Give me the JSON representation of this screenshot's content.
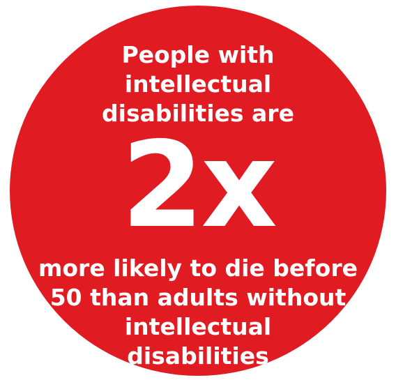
{
  "badge": {
    "colors": {
      "circle": "#e11b22",
      "text": "#ffffff",
      "background": "#ffffff"
    },
    "intro_lines": [
      "People with",
      "intellectual",
      "disabilities are"
    ],
    "figure": "2x",
    "outro_lines": [
      "more likely to die before",
      "50 than adults without",
      "intellectual",
      "disabilities"
    ]
  }
}
